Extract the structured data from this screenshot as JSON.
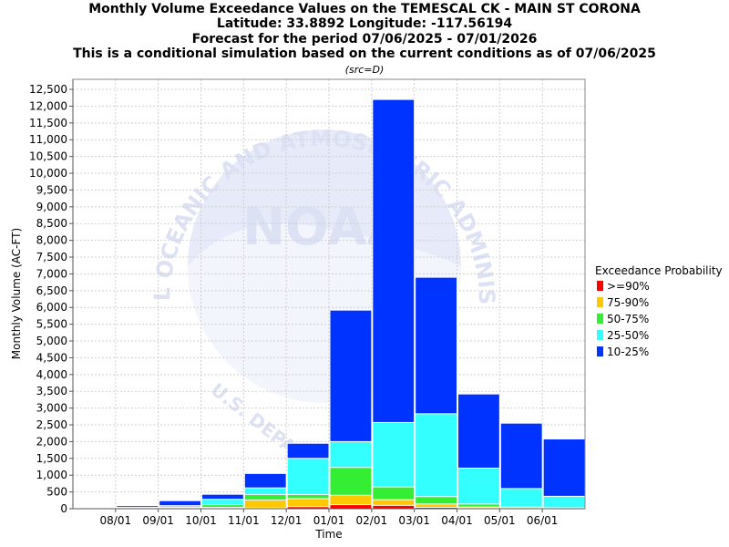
{
  "chart_data": {
    "type": "bar",
    "title_lines": [
      "Monthly Volume Exceedance Values on the TEMESCAL CK - MAIN ST CORONA",
      "Latitude: 33.8892 Longitude: -117.56194",
      "Forecast for the period 07/06/2025 - 07/01/2026",
      "This is a conditional simulation based on the current conditions as of 07/06/2025"
    ],
    "subtitle": "(src=D)",
    "xlabel": "Time",
    "ylabel": "Monthly Volume (AC-FT)",
    "x_tick_labels": [
      "08/01",
      "09/01",
      "10/01",
      "11/01",
      "12/01",
      "01/01",
      "02/01",
      "03/01",
      "04/01",
      "05/01",
      "06/01"
    ],
    "ylim": [
      0,
      12800
    ],
    "y_ticks": [
      0,
      500,
      1000,
      1500,
      2000,
      2500,
      3000,
      3500,
      4000,
      4500,
      5000,
      5500,
      6000,
      6500,
      7000,
      7500,
      8000,
      8500,
      9000,
      9500,
      10000,
      10500,
      11000,
      11500,
      12000,
      12500
    ],
    "y_tick_labels": [
      "0",
      "500",
      "1,000",
      "1,500",
      "2,000",
      "2,500",
      "3,000",
      "3,500",
      "4,000",
      "4,500",
      "5,000",
      "5,500",
      "6,000",
      "6,500",
      "7,000",
      "7,500",
      "8,000",
      "8,500",
      "9,000",
      "9,500",
      "10,000",
      "10,500",
      "11,000",
      "11,500",
      "12,000",
      "12,500"
    ],
    "grid": true,
    "legend": {
      "title": "Exceedance Probability",
      "placement": "right"
    },
    "series": [
      {
        "name": ">=90%",
        "color": "#ff0000",
        "values": [
          2,
          3,
          5,
          10,
          20,
          60,
          120,
          100,
          40,
          15,
          8,
          5
        ]
      },
      {
        "name": "75-90%",
        "color": "#ffc800",
        "values": [
          5,
          8,
          15,
          40,
          260,
          300,
          400,
          270,
          140,
          50,
          20,
          12
        ]
      },
      {
        "name": "50-75%",
        "color": "#33ee33",
        "values": [
          8,
          20,
          40,
          120,
          420,
          420,
          1230,
          650,
          360,
          140,
          55,
          30
        ]
      },
      {
        "name": "25-50%",
        "color": "#33ffff",
        "values": [
          15,
          40,
          90,
          280,
          620,
          1500,
          2000,
          2570,
          2830,
          1210,
          600,
          370
        ]
      },
      {
        "name": "10-25%",
        "color": "#0033ff",
        "values": [
          40,
          90,
          240,
          430,
          1050,
          1950,
          5920,
          12200,
          6900,
          3420,
          2550,
          2080
        ]
      }
    ],
    "watermark": {
      "logo_text": "NOAA",
      "ring_text": "NATIONAL OCEANIC AND ATMOSPHERIC ADMINISTRATION",
      "lower_text": "U.S. DEPARTMENT"
    }
  }
}
